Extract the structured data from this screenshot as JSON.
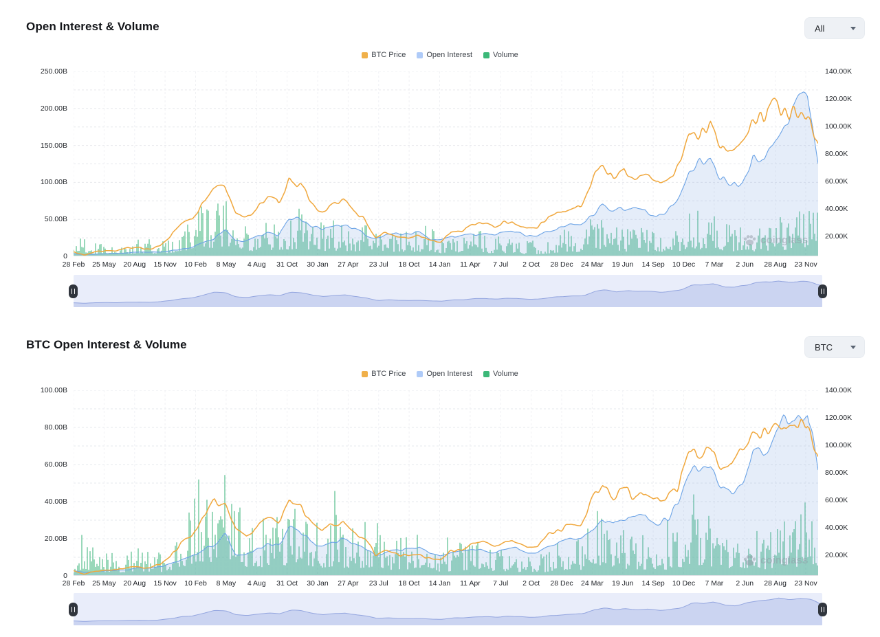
{
  "ui": {
    "watermark_text": "coinglass",
    "dropdowns": [
      {
        "value": "All"
      },
      {
        "value": "BTC"
      }
    ]
  },
  "theme": {
    "price_color": "#F0A73C",
    "price_legend_color": "#F0B04A",
    "oi_line_color": "#6BA3E6",
    "oi_fill_color": "rgba(126,164,226,0.20)",
    "oi_legend_color": "#AFCBF8",
    "volume_color": "#4DBB88",
    "volume_legend_color": "#3CB878",
    "nav_bg": "#E9EDFA",
    "nav_fill": "rgba(148,166,224,0.35)",
    "nav_line": "#93A5DF",
    "handle_color": "#30353D",
    "grid_color": "#E6E8EC",
    "text_color": "#23262B"
  },
  "chart_data": [
    {
      "type": "mixed: line (price) + area (open interest) + bar (volume)",
      "title": "Open Interest & Volume",
      "range_selector": "All",
      "legend": [
        {
          "label": "BTC Price",
          "color": "#F0B04A",
          "series_type": "line",
          "axis": "right"
        },
        {
          "label": "Open Interest",
          "color": "#AFCBF8",
          "series_type": "area",
          "axis": "left"
        },
        {
          "label": "Volume",
          "color": "#3CB878",
          "series_type": "bar",
          "axis": "left"
        }
      ],
      "left_axis": {
        "unit": "USD",
        "ticks": [
          "250.00B",
          "200.00B",
          "150.00B",
          "100.00B",
          "50.00B",
          "0"
        ],
        "min_B": 0,
        "max_B": 250
      },
      "right_axis": {
        "unit": "USD",
        "ticks": [
          "140.00K",
          "120.00K",
          "100.00K",
          "80.00K",
          "60.00K",
          "40.00K",
          "20.00K"
        ],
        "tick_interval_K": 20
      },
      "x_ticks": [
        "28 Feb",
        "25 May",
        "20 Aug",
        "15 Nov",
        "10 Feb",
        "8 May",
        "4 Aug",
        "31 Oct",
        "30 Jan",
        "27 Apr",
        "23 Jul",
        "18 Oct",
        "14 Jan",
        "11 Apr",
        "7 Jul",
        "2 Oct",
        "28 Dec",
        "24 Mar",
        "19 Jun",
        "14 Sep",
        "10 Dec",
        "7 Mar",
        "2 Jun",
        "28 Aug",
        "23 Nov"
      ],
      "anchors": {
        "interval": "monthly",
        "start": "Feb 2020",
        "end": "Nov 2025"
      },
      "series": [
        {
          "name": "BTC Price",
          "axis": "right",
          "unit": "K USD",
          "monthly_values": [
            8.6,
            6.4,
            8.8,
            9.5,
            9.1,
            11.3,
            11.7,
            10.8,
            13.8,
            19.7,
            29,
            33.1,
            45.2,
            58.8,
            57.8,
            37.3,
            35,
            41.5,
            47.2,
            43.8,
            61.3,
            57,
            46.2,
            38.5,
            43.2,
            45.5,
            37.7,
            31.8,
            19.9,
            23.3,
            20.1,
            19.4,
            20.5,
            17.2,
            16.5,
            23.1,
            23.5,
            28.5,
            29.2,
            27.2,
            30.5,
            29.2,
            26,
            26.9,
            34.7,
            37.7,
            42.3,
            42.6,
            61.2,
            71.3,
            60.6,
            67.5,
            62.7,
            64.6,
            59,
            63.3,
            70.2,
            96.4,
            93.4,
            102.4,
            84.4,
            82.5,
            94.2,
            104.6,
            107.1,
            115.8,
            108.2,
            114,
            110.1,
            87.3
          ]
        },
        {
          "name": "Open Interest",
          "axis": "left",
          "unit": "B USD",
          "monthly_values": [
            3.6,
            2.3,
            3,
            3.5,
            4,
            4.6,
            5.8,
            5.3,
            5.9,
            7.6,
            9.8,
            13,
            18.5,
            23,
            36,
            20.5,
            20,
            26,
            31,
            30,
            50,
            53,
            42,
            37,
            39,
            42,
            38,
            30,
            24,
            28,
            30.5,
            32,
            34,
            24,
            22,
            27,
            28.5,
            30,
            30,
            29,
            31,
            33,
            28,
            29,
            36,
            40,
            44,
            43,
            55,
            70,
            60,
            66,
            64,
            65,
            55,
            60,
            78,
            112,
            130,
            135,
            105,
            93,
            100,
            130,
            126,
            158,
            185,
            200,
            215,
            128
          ]
        },
        {
          "name": "Volume",
          "axis": "left",
          "unit": "B USD (typical daily)",
          "monthly_values": [
            12,
            25,
            15,
            14,
            13,
            15,
            20,
            17,
            15,
            22,
            30,
            45,
            55,
            50,
            55,
            60,
            35,
            30,
            38,
            40,
            42,
            45,
            40,
            32,
            35,
            33,
            30,
            32,
            35,
            25,
            26,
            28,
            26,
            30,
            18,
            20,
            24,
            28,
            22,
            18,
            20,
            16,
            14,
            13,
            18,
            24,
            26,
            25,
            38,
            45,
            35,
            30,
            28,
            26,
            30,
            26,
            30,
            48,
            45,
            40,
            38,
            30,
            32,
            30,
            28,
            35,
            40,
            38,
            55,
            40
          ]
        }
      ]
    },
    {
      "type": "mixed: line (price) + area (open interest) + bar (volume)",
      "title": "BTC Open Interest & Volume",
      "range_selector": "BTC",
      "legend": [
        {
          "label": "BTC Price",
          "color": "#F0B04A",
          "series_type": "line",
          "axis": "right"
        },
        {
          "label": "Open Interest",
          "color": "#AFCBF8",
          "series_type": "area",
          "axis": "left"
        },
        {
          "label": "Volume",
          "color": "#3CB878",
          "series_type": "bar",
          "axis": "left"
        }
      ],
      "left_axis": {
        "unit": "USD",
        "ticks": [
          "100.00B",
          "80.00B",
          "60.00B",
          "40.00B",
          "20.00B",
          "0"
        ],
        "min_B": 0,
        "max_B": 100
      },
      "right_axis": {
        "unit": "USD",
        "ticks": [
          "140.00K",
          "120.00K",
          "100.00K",
          "80.00K",
          "60.00K",
          "40.00K",
          "20.00K"
        ],
        "tick_interval_K": 20
      },
      "x_ticks": [
        "28 Feb",
        "25 May",
        "20 Aug",
        "15 Nov",
        "10 Feb",
        "8 May",
        "4 Aug",
        "31 Oct",
        "30 Jan",
        "27 Apr",
        "23 Jul",
        "18 Oct",
        "14 Jan",
        "11 Apr",
        "7 Jul",
        "2 Oct",
        "28 Dec",
        "24 Mar",
        "19 Jun",
        "14 Sep",
        "10 Dec",
        "7 Mar",
        "2 Jun",
        "28 Aug",
        "23 Nov"
      ],
      "anchors": {
        "interval": "monthly",
        "start": "Feb 2020",
        "end": "Nov 2025"
      },
      "series": [
        {
          "name": "BTC Price",
          "axis": "right",
          "unit": "K USD",
          "monthly_values": [
            8.6,
            6.4,
            8.8,
            9.5,
            9.1,
            11.3,
            11.7,
            10.8,
            13.8,
            19.7,
            29,
            33.1,
            45.2,
            58.8,
            57.8,
            37.3,
            35,
            41.5,
            47.2,
            43.8,
            61.3,
            57,
            46.2,
            38.5,
            43.2,
            45.5,
            37.7,
            31.8,
            19.9,
            23.3,
            20.1,
            19.4,
            20.5,
            17.2,
            16.5,
            23.1,
            23.5,
            28.5,
            29.2,
            27.2,
            30.5,
            29.2,
            26,
            26.9,
            34.7,
            37.7,
            42.3,
            42.6,
            61.2,
            71.3,
            60.6,
            67.5,
            62.7,
            64.6,
            59,
            63.3,
            70.2,
            96.4,
            93.4,
            102.4,
            84.4,
            82.5,
            94.2,
            104.6,
            107.1,
            115.8,
            108.2,
            114,
            110.1,
            87.3
          ]
        },
        {
          "name": "Open Interest",
          "axis": "left",
          "unit": "B USD",
          "monthly_values": [
            2.8,
            1.9,
            2.4,
            2.8,
            3,
            3.4,
            4.4,
            4.1,
            4.8,
            6.2,
            8.3,
            10.5,
            13.8,
            16.5,
            23,
            12,
            11.5,
            14,
            17,
            16,
            26,
            24,
            19,
            16.5,
            17.5,
            19,
            17.5,
            14.5,
            11,
            13,
            14.5,
            15,
            16,
            11.5,
            10.5,
            12.5,
            13,
            14,
            13.5,
            12.5,
            14,
            14.5,
            12,
            12.5,
            16,
            18,
            20,
            19.5,
            25,
            32,
            28,
            31,
            30,
            31,
            27,
            29,
            38,
            55,
            60,
            62,
            50,
            47,
            52,
            65,
            63,
            78,
            86,
            88,
            92,
            57
          ]
        },
        {
          "name": "Volume",
          "axis": "left",
          "unit": "B USD (typical daily)",
          "monthly_values": [
            8,
            18,
            10,
            9,
            8,
            9,
            12,
            10,
            9,
            14,
            20,
            30,
            35,
            32,
            35,
            38,
            22,
            18,
            24,
            25,
            26,
            28,
            24,
            20,
            22,
            20,
            18,
            20,
            22,
            15,
            15,
            16,
            15,
            18,
            10,
            11,
            13,
            16,
            12,
            10,
            11,
            9,
            8,
            7,
            10,
            14,
            15,
            14,
            22,
            26,
            20,
            17,
            16,
            15,
            17,
            15,
            17,
            28,
            26,
            23,
            22,
            17,
            18,
            17,
            16,
            20,
            23,
            22,
            33,
            24
          ]
        }
      ]
    }
  ]
}
